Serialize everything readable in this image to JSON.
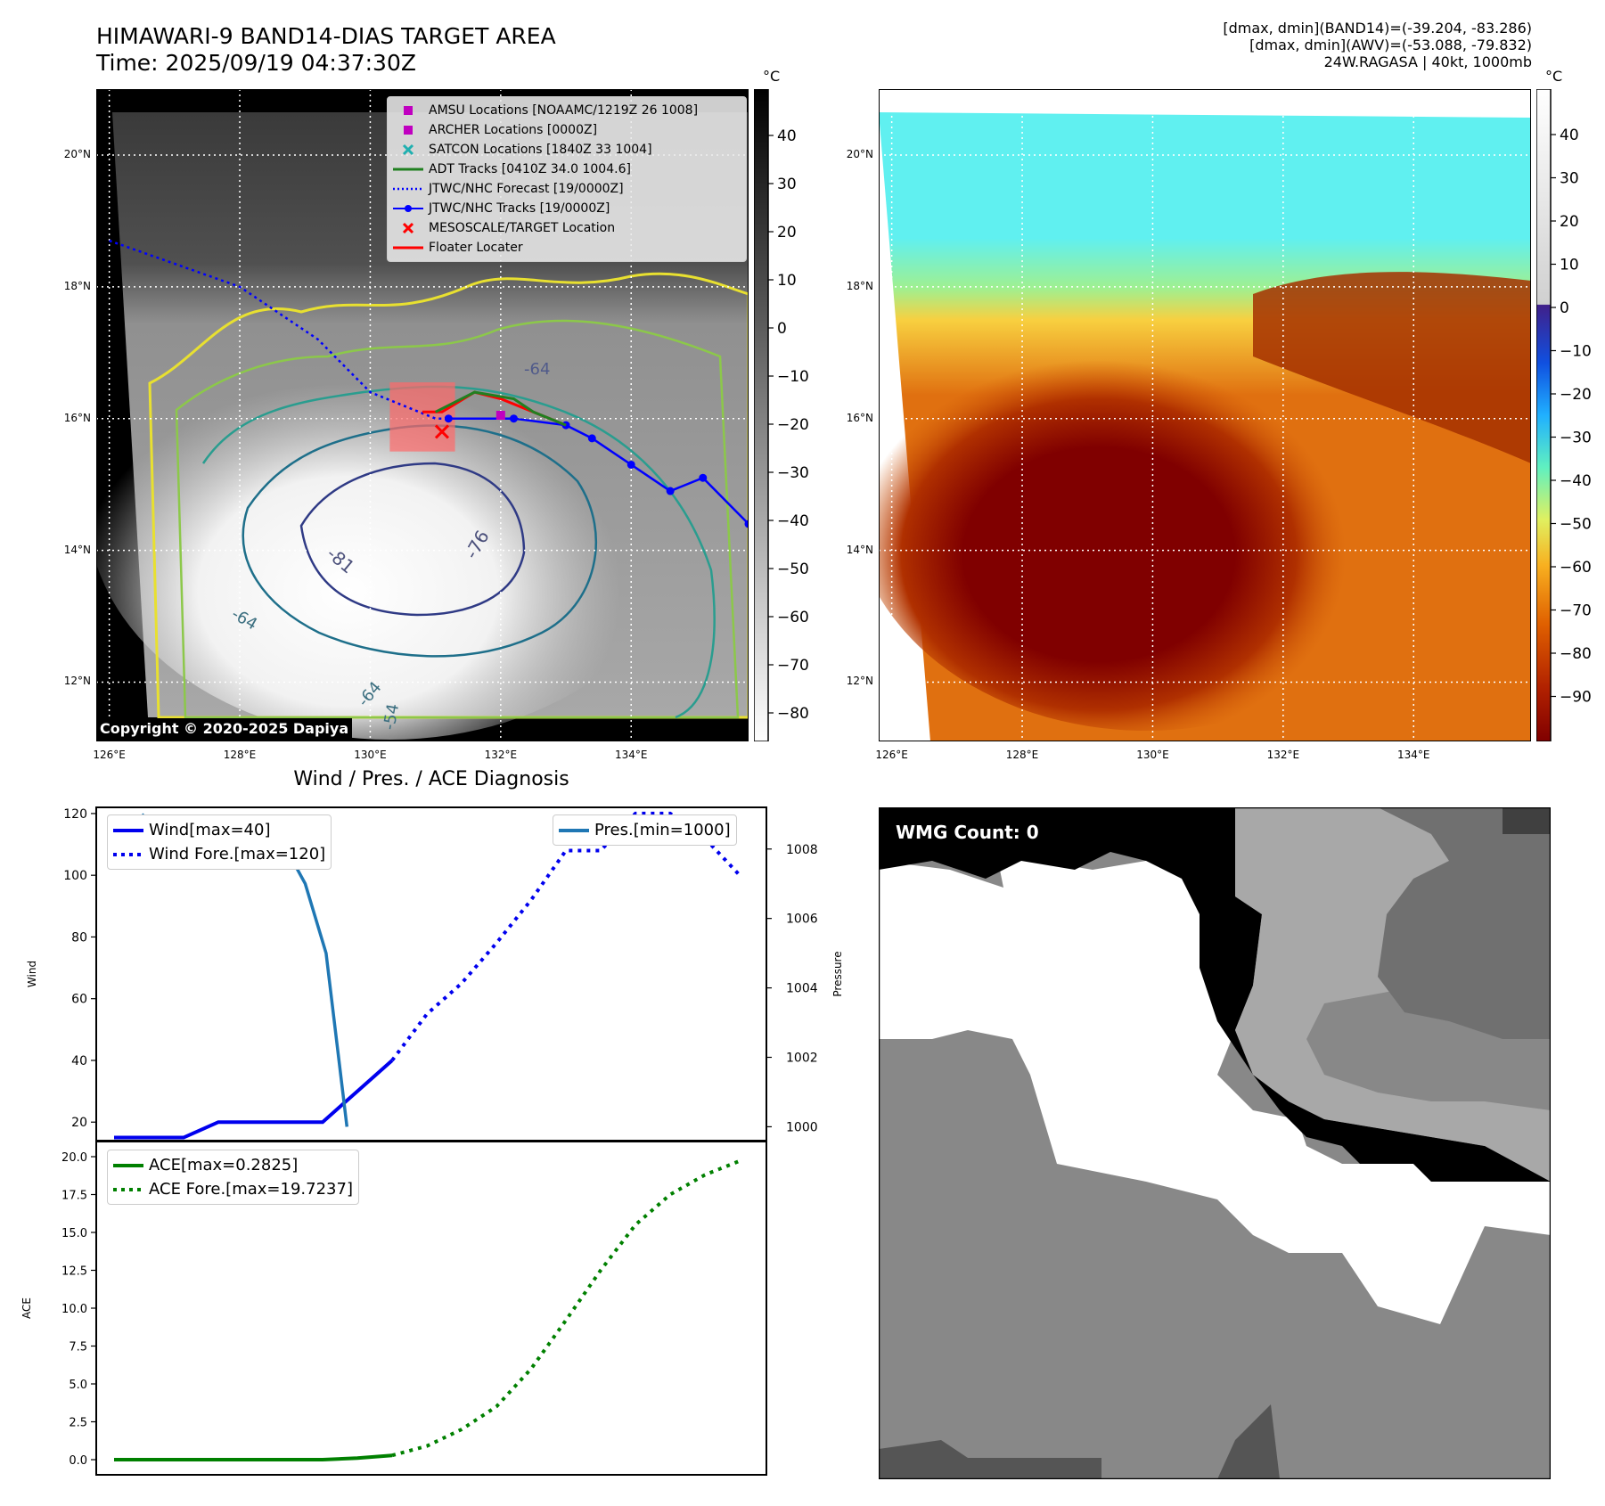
{
  "header": {
    "title_line1": "HIMAWARI-9 BAND14-DIAS TARGET AREA",
    "title_line2": "Time: 2025/09/19 04:37:30Z",
    "info_line1": "[dmax, dmin](BAND14)=(-39.204, -83.286)",
    "info_line2": "[dmax, dmin](AWV)=(-53.088, -79.832)",
    "info_line3": "24W.RAGASA | 40kt, 1000mb"
  },
  "map_axes": {
    "lat_labels": [
      "20°N",
      "18°N",
      "16°N",
      "14°N",
      "12°N"
    ],
    "lon_labels": [
      "126°E",
      "128°E",
      "130°E",
      "132°E",
      "134°E"
    ],
    "lat_values": [
      20,
      18,
      16,
      14,
      12
    ],
    "lon_values": [
      126,
      128,
      130,
      132,
      134
    ]
  },
  "left_map": {
    "copyright": "Copyright © 2020-2025 Dapiya",
    "colorbar_unit": "°C",
    "colorbar_ticks": [
      "40",
      "30",
      "20",
      "10",
      "0",
      "−10",
      "−20",
      "−30",
      "−40",
      "−50",
      "−60",
      "−70",
      "−80"
    ],
    "contour_labels": [
      "-64",
      "-76",
      "-81",
      "-64",
      "-64",
      "-54"
    ],
    "legend": [
      {
        "label": "AMSU Locations [NOAAMC/1219Z 26 1008]",
        "symbol": "square",
        "color": "#c000c0"
      },
      {
        "label": "ARCHER Locations [0000Z]",
        "symbol": "square",
        "color": "#c000c0"
      },
      {
        "label": "SATCON Locations [1840Z 33 1004]",
        "symbol": "x",
        "color": "#20b0b0"
      },
      {
        "label": "ADT Tracks [0410Z 34.0 1004.6]",
        "symbol": "line",
        "color": "#208020"
      },
      {
        "label": "JTWC/NHC Forecast [19/0000Z]",
        "symbol": "dotted",
        "color": "#0000ff"
      },
      {
        "label": "JTWC/NHC Tracks [19/0000Z]",
        "symbol": "line-dot",
        "color": "#0000ff"
      },
      {
        "label": "MESOSCALE/TARGET Location",
        "symbol": "x",
        "color": "#ff0000"
      },
      {
        "label": "Floater Locater",
        "symbol": "line",
        "color": "#ff0000"
      }
    ],
    "jtwc_track": [
      [
        131.2,
        16.0
      ],
      [
        132.2,
        16.0
      ],
      [
        133.0,
        15.9
      ],
      [
        133.4,
        15.7
      ],
      [
        134.0,
        15.3
      ],
      [
        134.6,
        14.9
      ],
      [
        135.1,
        15.1
      ],
      [
        135.8,
        14.4
      ]
    ],
    "jtwc_forecast": [
      [
        126.0,
        18.7
      ],
      [
        128.0,
        18.0
      ],
      [
        129.2,
        17.2
      ],
      [
        130.0,
        16.4
      ],
      [
        131.0,
        16.0
      ],
      [
        131.2,
        16.0
      ]
    ],
    "adt_track": [
      [
        131.0,
        16.1
      ],
      [
        131.6,
        16.4
      ],
      [
        132.2,
        16.3
      ],
      [
        132.5,
        16.1
      ],
      [
        133.0,
        15.9
      ]
    ],
    "floater_track": [
      [
        130.8,
        16.1
      ],
      [
        131.1,
        16.1
      ],
      [
        131.6,
        16.4
      ],
      [
        132.0,
        16.3
      ],
      [
        132.5,
        16.1
      ],
      [
        133.0,
        15.9
      ]
    ],
    "amsu_location": [
      132.0,
      16.05
    ],
    "target_location": [
      131.1,
      15.8
    ],
    "target_box": {
      "lon": [
        130.3,
        131.3
      ],
      "lat": [
        15.5,
        16.55
      ]
    }
  },
  "right_map": {
    "colorbar_unit": "°C",
    "colorbar_ticks": [
      "40",
      "30",
      "20",
      "10",
      "0",
      "−10",
      "−20",
      "−30",
      "−40",
      "−50",
      "−60",
      "−70",
      "−80",
      "−90"
    ]
  },
  "diagnosis_title": "Wind / Pres. / ACE Diagnosis",
  "wmg_label": "WMG Count: 0",
  "colors": {
    "wind": "#0000ee",
    "pressure": "#1f77b4",
    "ace": "#008000"
  },
  "chart_data": [
    {
      "type": "line",
      "title": "Wind / Pres. / ACE Diagnosis",
      "xlabel": "",
      "ylabel": "Wind",
      "ylabel_right": "Pressure",
      "ylim": [
        14,
        122
      ],
      "ylim_right": [
        999.6,
        1009.2
      ],
      "yticks": [
        20,
        40,
        60,
        80,
        100,
        120
      ],
      "yticks_right": [
        1000,
        1002,
        1004,
        1006,
        1008
      ],
      "series": [
        {
          "name": "Wind[max=40]",
          "axis": "left",
          "style": "solid",
          "x": [
            0,
            1,
            2,
            3,
            4,
            5,
            6,
            7,
            8
          ],
          "values": [
            15,
            15,
            15,
            20,
            20,
            20,
            20,
            30,
            40
          ]
        },
        {
          "name": "Wind Fore.[max=120]",
          "axis": "left",
          "style": "dotted",
          "x": [
            8,
            9,
            10,
            11,
            12,
            13,
            14,
            15,
            16,
            17,
            18
          ],
          "values": [
            40,
            55,
            65,
            78,
            92,
            108,
            108,
            120,
            120,
            112,
            100
          ]
        },
        {
          "name": "Pres.[min=1000]",
          "axis": "right",
          "style": "solid",
          "x": [
            0.8,
            1.9,
            3.1,
            3.7,
            4.3,
            4.9,
            5.5,
            6.1,
            6.7
          ],
          "values": [
            1009.0,
            1008.0,
            1008.0,
            1008.0,
            1008.1,
            1008.1,
            1007.0,
            1005.0,
            1000.0
          ]
        }
      ]
    },
    {
      "type": "line",
      "xlabel": "",
      "ylabel": "ACE",
      "ylim": [
        -1.0,
        21.0
      ],
      "yticks": [
        0.0,
        2.5,
        5.0,
        7.5,
        10.0,
        12.5,
        15.0,
        17.5,
        20.0
      ],
      "ytick_labels": [
        "0.0",
        "2.5",
        "5.0",
        "7.5",
        "10.0",
        "12.5",
        "15.0",
        "17.5",
        "20.0"
      ],
      "series": [
        {
          "name": "ACE[max=0.2825]",
          "style": "solid",
          "x": [
            0,
            1,
            2,
            3,
            4,
            5,
            6,
            7,
            8
          ],
          "values": [
            0,
            0,
            0,
            0,
            0,
            0,
            0,
            0.1,
            0.28
          ]
        },
        {
          "name": "ACE Fore.[max=19.7237]",
          "style": "dotted",
          "x": [
            8,
            9,
            10,
            11,
            12,
            13,
            14,
            15,
            16,
            17,
            18
          ],
          "values": [
            0.28,
            0.9,
            2.0,
            3.5,
            6.0,
            9.2,
            12.5,
            15.5,
            17.5,
            18.8,
            19.72
          ]
        }
      ]
    }
  ]
}
